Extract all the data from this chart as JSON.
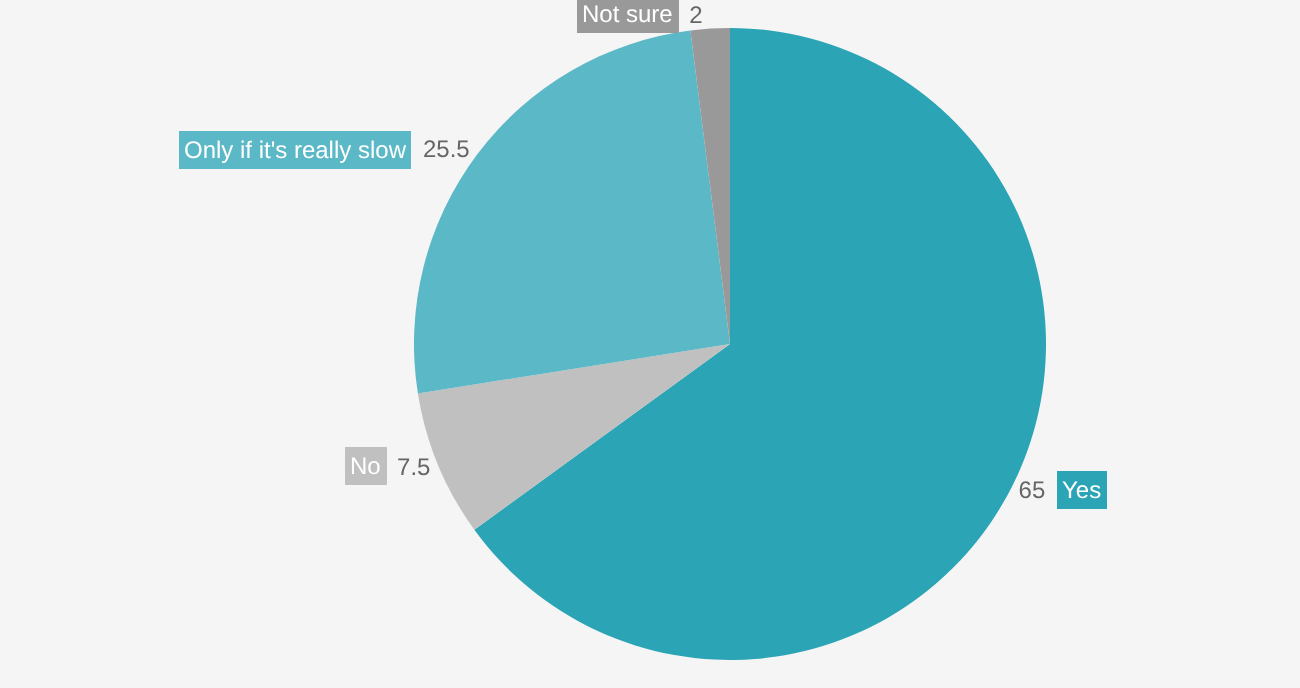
{
  "chart_data": {
    "type": "pie",
    "categories": [
      "Yes",
      "No",
      "Only if it's really slow",
      "Not sure"
    ],
    "values": [
      65,
      7.5,
      25.5,
      2
    ],
    "colors": [
      "#2ba5b5",
      "#c0c0c0",
      "#5bb8c6",
      "#999999"
    ],
    "data_labels": true,
    "legend": false
  }
}
